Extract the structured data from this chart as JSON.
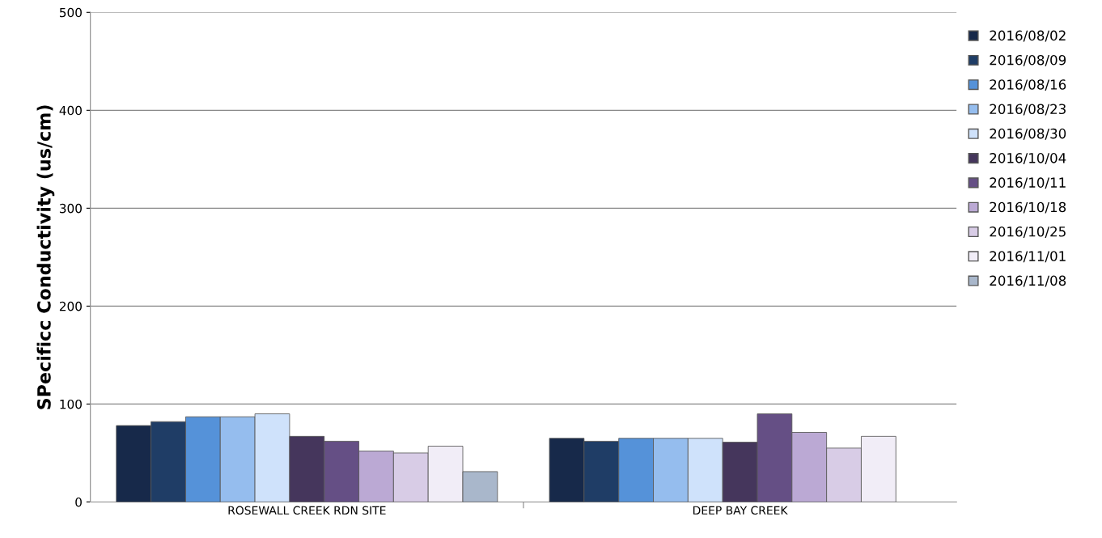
{
  "chart_data": {
    "type": "bar",
    "ylabel": "SPecificc Conductivity (us/cm)",
    "categories": [
      "ROSEWALL CREEK RDN SITE",
      "DEEP BAY CREEK"
    ],
    "ylim": [
      0,
      500
    ],
    "yticks": [
      0,
      100,
      200,
      300,
      400,
      500
    ],
    "grid": "y",
    "legend": "right",
    "series": [
      {
        "name": "2016/08/02",
        "color": "#17294a",
        "values": [
          78,
          65
        ]
      },
      {
        "name": "2016/08/09",
        "color": "#1f3d66",
        "values": [
          82,
          62
        ]
      },
      {
        "name": "2016/08/16",
        "color": "#5592d9",
        "values": [
          87,
          65
        ]
      },
      {
        "name": "2016/08/23",
        "color": "#95bdee",
        "values": [
          87,
          65
        ]
      },
      {
        "name": "2016/08/30",
        "color": "#cfe2fb",
        "values": [
          90,
          65
        ]
      },
      {
        "name": "2016/10/04",
        "color": "#45365c",
        "values": [
          67,
          61
        ]
      },
      {
        "name": "2016/10/11",
        "color": "#654f85",
        "values": [
          62,
          90
        ]
      },
      {
        "name": "2016/10/18",
        "color": "#bba9d4",
        "values": [
          52,
          71
        ]
      },
      {
        "name": "2016/10/25",
        "color": "#d8cce6",
        "values": [
          50,
          55
        ]
      },
      {
        "name": "2016/11/01",
        "color": "#f1edf7",
        "values": [
          57,
          67
        ]
      },
      {
        "name": "2016/11/08",
        "color": "#a9b7cb",
        "values": [
          31,
          null
        ]
      }
    ]
  }
}
